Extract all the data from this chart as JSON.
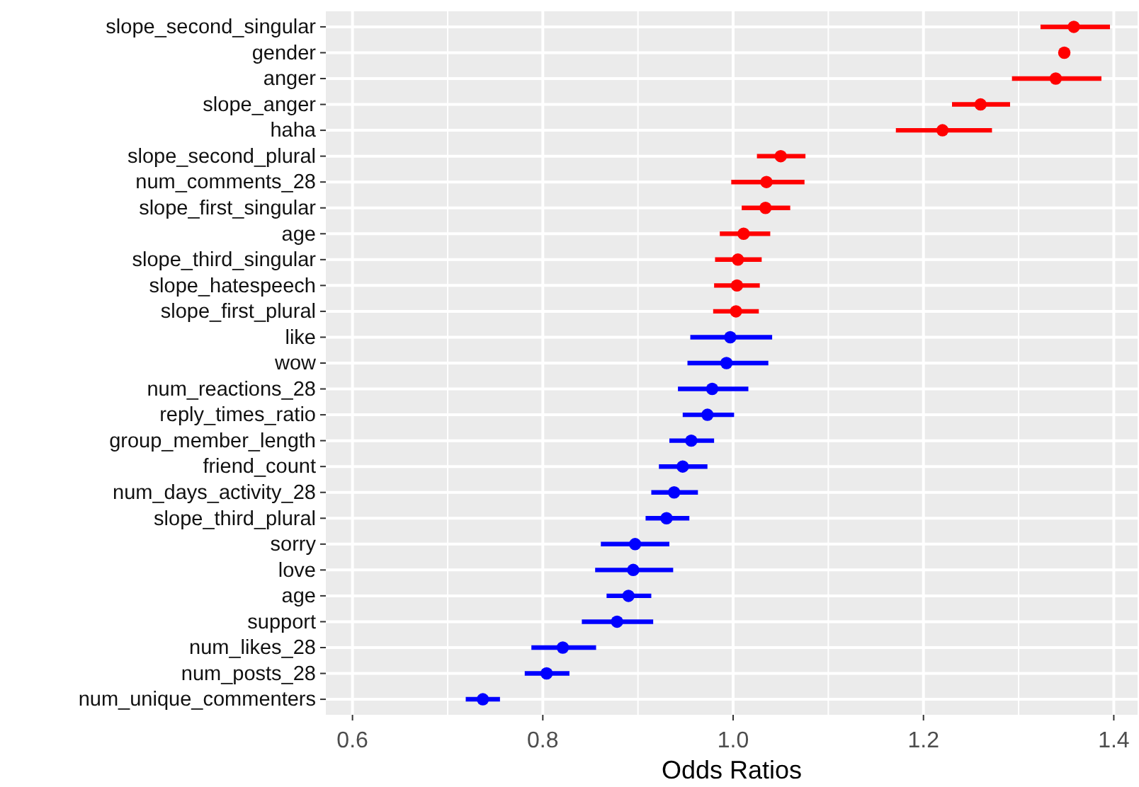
{
  "chart_data": {
    "type": "scatter",
    "xlabel": "Odds Ratios",
    "orientation": "horizontal",
    "marker": "circle",
    "grid": true,
    "categories": [
      "slope_second_singular",
      "gender",
      "anger",
      "slope_anger",
      "haha",
      "slope_second_plural",
      "num_comments_28",
      "slope_first_singular",
      "age",
      "slope_third_singular",
      "slope_hatespeech",
      "slope_first_plural",
      "like",
      "wow",
      "num_reactions_28",
      "reply_times_ratio",
      "group_member_length",
      "friend_count",
      "num_days_activity_28",
      "slope_third_plural",
      "sorry",
      "love",
      "age",
      "support",
      "num_likes_28",
      "num_posts_28",
      "num_unique_commenters"
    ],
    "xlim": [
      0.572,
      1.425
    ],
    "xticks": [
      {
        "value": 0.6,
        "label": "0.6"
      },
      {
        "value": 0.7,
        "label": null
      },
      {
        "value": 0.8,
        "label": "0.8"
      },
      {
        "value": 0.9,
        "label": null
      },
      {
        "value": 1.0,
        "label": "1.0"
      },
      {
        "value": 1.1,
        "label": null
      },
      {
        "value": 1.2,
        "label": "1.2"
      },
      {
        "value": 1.3,
        "label": null
      },
      {
        "value": 1.4,
        "label": "1.4"
      }
    ],
    "series": [
      {
        "color": "#ff0000",
        "values": [
          1.358,
          1.348,
          1.339,
          1.26,
          1.22,
          1.05,
          1.035,
          1.034,
          1.011,
          1.005,
          1.004,
          1.003,
          null,
          null,
          null,
          null,
          null,
          null,
          null,
          null,
          null,
          null,
          null,
          null,
          null,
          null,
          null
        ],
        "errors": [
          [
            1.323,
            1.396
          ],
          null,
          [
            1.293,
            1.387
          ],
          [
            1.23,
            1.291
          ],
          [
            1.171,
            1.272
          ],
          [
            1.025,
            1.076
          ],
          [
            0.998,
            1.075
          ],
          [
            1.009,
            1.06
          ],
          [
            0.986,
            1.039
          ],
          [
            0.981,
            1.03
          ],
          [
            0.98,
            1.028
          ],
          [
            0.979,
            1.027
          ],
          null,
          null,
          null,
          null,
          null,
          null,
          null,
          null,
          null,
          null,
          null,
          null,
          null,
          null,
          null
        ]
      },
      {
        "color": "#0000ff",
        "values": [
          null,
          null,
          null,
          null,
          null,
          null,
          null,
          null,
          null,
          null,
          null,
          null,
          0.997,
          0.993,
          0.978,
          0.973,
          0.956,
          0.947,
          0.938,
          0.93,
          0.897,
          0.895,
          0.89,
          0.878,
          0.821,
          0.804,
          0.737
        ],
        "errors": [
          null,
          null,
          null,
          null,
          null,
          null,
          null,
          null,
          null,
          null,
          null,
          null,
          [
            0.955,
            1.041
          ],
          [
            0.952,
            1.037
          ],
          [
            0.942,
            1.016
          ],
          [
            0.947,
            1.001
          ],
          [
            0.933,
            0.98
          ],
          [
            0.922,
            0.973
          ],
          [
            0.914,
            0.963
          ],
          [
            0.908,
            0.954
          ],
          [
            0.861,
            0.933
          ],
          [
            0.855,
            0.937
          ],
          [
            0.867,
            0.914
          ],
          [
            0.841,
            0.916
          ],
          [
            0.788,
            0.856
          ],
          [
            0.781,
            0.828
          ],
          [
            0.719,
            0.755
          ]
        ]
      }
    ]
  }
}
